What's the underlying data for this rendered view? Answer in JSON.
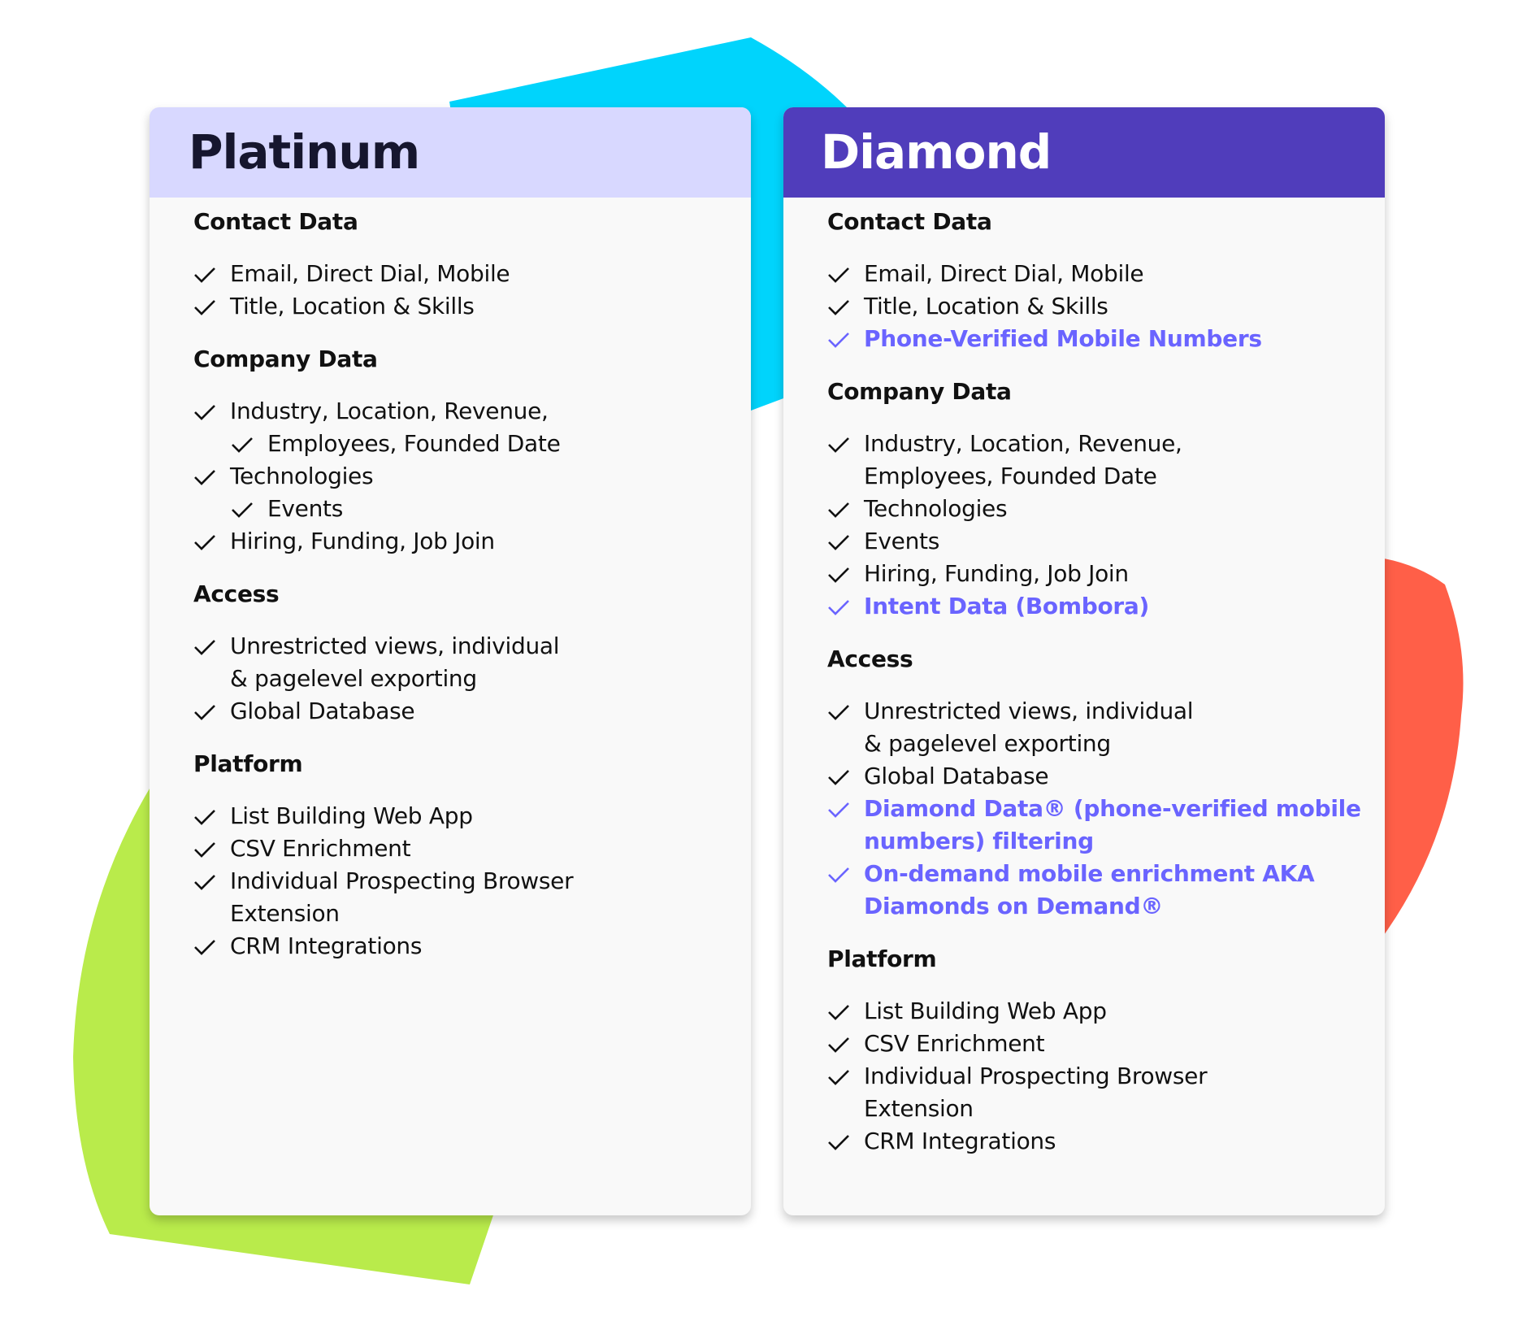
{
  "colors": {
    "cyan": "#00d4fc",
    "green": "#b9eb4b",
    "red": "#ff5f48",
    "platinum_header": "#d8d8ff",
    "diamond_header": "#503dbb",
    "highlight": "#6a64ff"
  },
  "plans": [
    {
      "title": "Platinum",
      "sections": [
        {
          "title": "Contact Data",
          "items": [
            {
              "text": "Email, Direct Dial, Mobile",
              "check": true
            },
            {
              "text": "Title, Location & Skills",
              "check": true
            }
          ]
        },
        {
          "title": "Company Data",
          "items": [
            {
              "text": "Industry, Location, Revenue,",
              "check": true
            },
            {
              "text": "Employees, Founded Date",
              "check": true,
              "indent": true
            },
            {
              "text": "Technologies",
              "check": true
            },
            {
              "text": "Events",
              "check": true,
              "indent": true
            },
            {
              "text": "Hiring, Funding, Job Join",
              "check": true
            }
          ]
        },
        {
          "title": "Access",
          "items": [
            {
              "text": "Unrestricted views, individual",
              "check": true
            },
            {
              "text": "& pagelevel exporting",
              "check": false
            },
            {
              "text": "Global Database",
              "check": true
            }
          ]
        },
        {
          "title": "Platform",
          "items": [
            {
              "text": "List Building Web App",
              "check": true
            },
            {
              "text": "CSV Enrichment",
              "check": true
            },
            {
              "text": "Individual Prospecting Browser",
              "check": true
            },
            {
              "text": "Extension",
              "check": false
            },
            {
              "text": "CRM Integrations",
              "check": true
            }
          ]
        }
      ]
    },
    {
      "title": "Diamond",
      "sections": [
        {
          "title": "Contact Data",
          "items": [
            {
              "text": "Email, Direct Dial, Mobile",
              "check": true
            },
            {
              "text": "Title, Location & Skills",
              "check": true
            },
            {
              "text": "Phone-Verified Mobile Numbers",
              "check": true,
              "highlight": true
            }
          ]
        },
        {
          "title": "Company Data",
          "items": [
            {
              "text": "Industry, Location, Revenue,",
              "check": true
            },
            {
              "text": "Employees, Founded Date",
              "check": false
            },
            {
              "text": "Technologies",
              "check": true
            },
            {
              "text": "Events",
              "check": true
            },
            {
              "text": "Hiring, Funding, Job Join",
              "check": true
            },
            {
              "text": "Intent Data (Bombora)",
              "check": true,
              "highlight": true
            }
          ]
        },
        {
          "title": "Access",
          "items": [
            {
              "text": "Unrestricted views, individual",
              "check": true
            },
            {
              "text": "& pagelevel exporting",
              "check": false
            },
            {
              "text": "Global Database",
              "check": true
            },
            {
              "text": "Diamond Data® (phone-verified mobile",
              "check": true,
              "highlight": true
            },
            {
              "text": "numbers) filtering",
              "check": false,
              "highlight": true
            },
            {
              "text": "On-demand mobile enrichment AKA",
              "check": true,
              "highlight": true
            },
            {
              "text": "Diamonds on Demand®",
              "check": false,
              "highlight": true
            }
          ]
        },
        {
          "title": "Platform",
          "items": [
            {
              "text": "List Building Web App",
              "check": true
            },
            {
              "text": "CSV Enrichment",
              "check": true
            },
            {
              "text": "Individual Prospecting Browser",
              "check": true
            },
            {
              "text": "Extension",
              "check": false
            },
            {
              "text": "CRM Integrations",
              "check": true
            }
          ]
        }
      ]
    }
  ]
}
